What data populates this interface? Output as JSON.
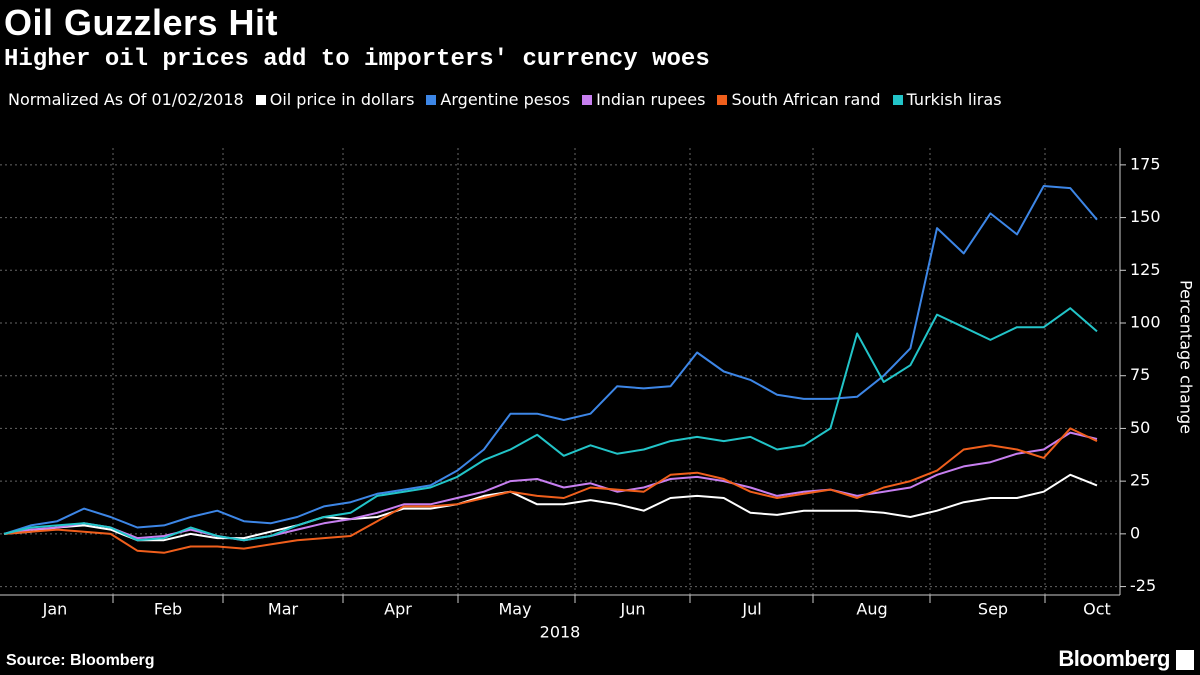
{
  "chart_data": {
    "type": "line",
    "title": "Oil Guzzlers Hit",
    "subtitle": "Higher oil prices add to importers' currency woes",
    "legend_title": "Normalized As Of 01/02/2018",
    "categories_labels": [
      "Jan",
      "Feb",
      "Mar",
      "Apr",
      "May",
      "Jun",
      "Jul",
      "Aug",
      "Sep",
      "Oct"
    ],
    "x_axis_label": "2018",
    "y_axis_label": "Percentage change",
    "source": "Source: Bloomberg",
    "logo": "Bloomberg",
    "ylim": [
      -29,
      183
    ],
    "yticks": [
      -25,
      0,
      25,
      50,
      75,
      100,
      125,
      150,
      175
    ],
    "grid": true,
    "series": [
      {
        "name": "Oil price in dollars",
        "color": "#ffffff",
        "values": [
          0,
          1,
          3,
          4,
          2,
          -3,
          -3,
          0,
          -2,
          -2,
          1,
          4,
          8,
          7,
          8,
          12,
          12,
          14,
          18,
          20,
          14,
          14,
          16,
          14,
          11,
          17,
          18,
          17,
          10,
          9,
          11,
          11,
          11,
          10,
          8,
          11,
          15,
          17,
          17,
          20,
          28,
          23
        ]
      },
      {
        "name": "Argentine pesos",
        "color": "#3d86e6",
        "values": [
          0,
          4,
          6,
          12,
          8,
          3,
          4,
          8,
          11,
          6,
          5,
          8,
          13,
          15,
          19,
          21,
          23,
          30,
          40,
          57,
          57,
          54,
          57,
          70,
          69,
          70,
          86,
          77,
          73,
          66,
          64,
          64,
          65,
          75,
          88,
          145,
          133,
          152,
          142,
          165,
          164,
          149
        ]
      },
      {
        "name": "Indian rupees",
        "color": "#c77ff0",
        "values": [
          0,
          2,
          3,
          5,
          3,
          -2,
          -1,
          2,
          -1,
          -3,
          -1,
          2,
          5,
          7,
          10,
          14,
          14,
          17,
          20,
          25,
          26,
          22,
          24,
          20,
          22,
          26,
          27,
          25,
          22,
          18,
          20,
          21,
          18,
          20,
          22,
          28,
          32,
          34,
          38,
          40,
          48,
          45
        ]
      },
      {
        "name": "South African rand",
        "color": "#f05f1c",
        "values": [
          0,
          1,
          2,
          1,
          0,
          -8,
          -9,
          -6,
          -6,
          -7,
          -5,
          -3,
          -2,
          -1,
          6,
          13,
          13,
          14,
          17,
          20,
          18,
          17,
          22,
          21,
          20,
          28,
          29,
          26,
          20,
          17,
          19,
          21,
          17,
          22,
          25,
          30,
          40,
          42,
          40,
          36,
          50,
          44
        ]
      },
      {
        "name": "Turkish liras",
        "color": "#22c4c8",
        "values": [
          0,
          3,
          4,
          5,
          3,
          -3,
          -2,
          3,
          -1,
          -3,
          -1,
          4,
          8,
          10,
          18,
          20,
          22,
          27,
          35,
          40,
          47,
          37,
          42,
          38,
          40,
          44,
          46,
          44,
          46,
          40,
          42,
          50,
          95,
          72,
          80,
          104,
          98,
          92,
          98,
          98,
          107,
          96
        ]
      }
    ]
  }
}
